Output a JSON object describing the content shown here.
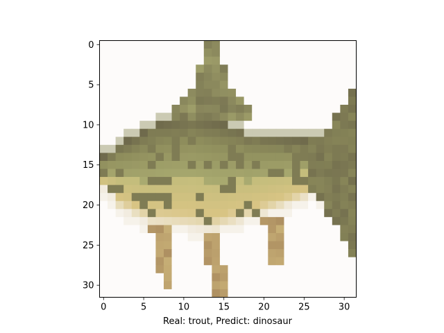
{
  "figure": {
    "caption": "Real: trout, Predict: dinosaur"
  },
  "image": {
    "rows": 32,
    "cols": 32,
    "subject": "trout",
    "palette": {
      "background": "#fdfbfa",
      "olive_dark": "#6f6a4c",
      "olive": "#8e8d5c",
      "olive_light": "#a9aa70",
      "yellow_green": "#c4bd7c",
      "belly": "#d8c484",
      "fin_brown": "#a7875c",
      "pale": "#f2ece0"
    }
  },
  "axes": {
    "x_ticks": [
      0,
      5,
      10,
      15,
      20,
      25,
      30
    ],
    "y_ticks": [
      0,
      5,
      10,
      15,
      20,
      25,
      30
    ],
    "x_range": [
      -0.5,
      31.5
    ],
    "y_range": [
      -0.5,
      31.5
    ]
  }
}
